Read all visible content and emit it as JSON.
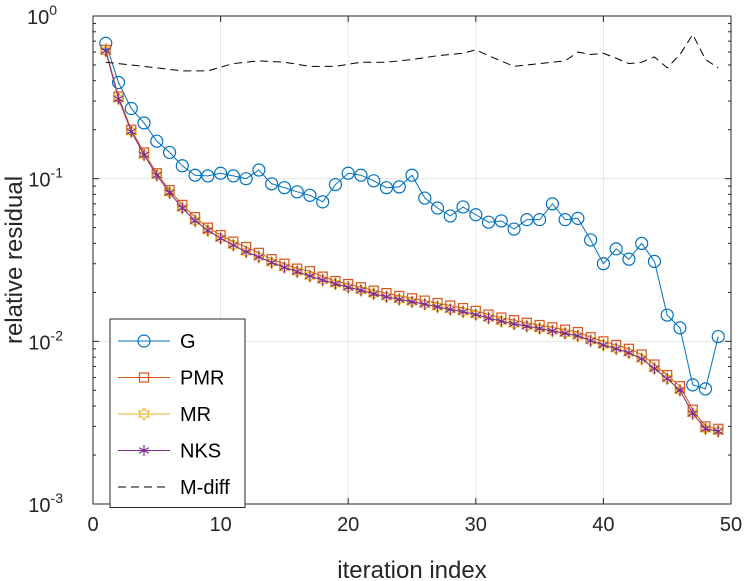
{
  "chart_data": {
    "type": "line",
    "title": "",
    "xlabel": "iteration index",
    "ylabel": "relative residual",
    "yscale": "log",
    "xlim": [
      0,
      50
    ],
    "ylim": [
      0.001,
      1
    ],
    "x_ticks": [
      0,
      10,
      20,
      30,
      40,
      50
    ],
    "y_ticks": [
      {
        "value": 0.001,
        "base": "10",
        "exp": "-3"
      },
      {
        "value": 0.01,
        "base": "10",
        "exp": "-2"
      },
      {
        "value": 0.1,
        "base": "10",
        "exp": "-1"
      },
      {
        "value": 1,
        "base": "10",
        "exp": "0"
      }
    ],
    "grid": true,
    "legend_position": "bottom-left",
    "series": [
      {
        "name": "G",
        "color": "#0072BD",
        "marker": "circle",
        "dash": "",
        "x": [
          1,
          2,
          3,
          4,
          5,
          6,
          7,
          8,
          9,
          10,
          11,
          12,
          13,
          14,
          15,
          16,
          17,
          18,
          19,
          20,
          21,
          22,
          23,
          24,
          25,
          26,
          27,
          28,
          29,
          30,
          31,
          32,
          33,
          34,
          35,
          36,
          37,
          38,
          39,
          40,
          41,
          42,
          43,
          44,
          45,
          46,
          47,
          48,
          49
        ],
        "values": [
          0.68,
          0.39,
          0.27,
          0.22,
          0.17,
          0.145,
          0.12,
          0.105,
          0.104,
          0.108,
          0.104,
          0.1,
          0.113,
          0.093,
          0.088,
          0.083,
          0.079,
          0.072,
          0.092,
          0.108,
          0.105,
          0.097,
          0.088,
          0.089,
          0.105,
          0.076,
          0.066,
          0.059,
          0.067,
          0.06,
          0.054,
          0.055,
          0.049,
          0.056,
          0.056,
          0.07,
          0.056,
          0.057,
          0.042,
          0.03,
          0.037,
          0.032,
          0.04,
          0.031,
          0.0145,
          0.0121,
          0.0054,
          0.0051,
          0.0107
        ]
      },
      {
        "name": "PMR",
        "color": "#D95319",
        "marker": "square",
        "dash": "",
        "x": [
          1,
          2,
          3,
          4,
          5,
          6,
          7,
          8,
          9,
          10,
          11,
          12,
          13,
          14,
          15,
          16,
          17,
          18,
          19,
          20,
          21,
          22,
          23,
          24,
          25,
          26,
          27,
          28,
          29,
          30,
          31,
          32,
          33,
          34,
          35,
          36,
          37,
          38,
          39,
          40,
          41,
          42,
          43,
          44,
          45,
          46,
          47,
          48,
          49
        ],
        "values": [
          0.62,
          0.32,
          0.2,
          0.145,
          0.108,
          0.085,
          0.069,
          0.058,
          0.05,
          0.045,
          0.041,
          0.038,
          0.035,
          0.032,
          0.03,
          0.028,
          0.027,
          0.025,
          0.0235,
          0.0225,
          0.0215,
          0.0205,
          0.0198,
          0.019,
          0.0184,
          0.0178,
          0.0172,
          0.0166,
          0.016,
          0.0154,
          0.0146,
          0.014,
          0.0135,
          0.013,
          0.0126,
          0.0122,
          0.0118,
          0.0114,
          0.0106,
          0.01,
          0.0095,
          0.009,
          0.0083,
          0.0072,
          0.0062,
          0.0053,
          0.0038,
          0.003,
          0.0029
        ]
      },
      {
        "name": "MR",
        "color": "#EDB120",
        "marker": "hexagram",
        "dash": "",
        "x": [
          1,
          2,
          3,
          4,
          5,
          6,
          7,
          8,
          9,
          10,
          11,
          12,
          13,
          14,
          15,
          16,
          17,
          18,
          19,
          20,
          21,
          22,
          23,
          24,
          25,
          26,
          27,
          28,
          29,
          30,
          31,
          32,
          33,
          34,
          35,
          36,
          37,
          38,
          39,
          40,
          41,
          42,
          43,
          44,
          45,
          46,
          47,
          48,
          49
        ],
        "values": [
          0.61,
          0.31,
          0.195,
          0.14,
          0.105,
          0.082,
          0.066,
          0.055,
          0.048,
          0.043,
          0.039,
          0.0355,
          0.033,
          0.0305,
          0.0285,
          0.0268,
          0.0252,
          0.0238,
          0.0226,
          0.0215,
          0.0206,
          0.0196,
          0.0188,
          0.0181,
          0.0175,
          0.0169,
          0.0163,
          0.0157,
          0.0152,
          0.0146,
          0.0139,
          0.0133,
          0.0128,
          0.0124,
          0.012,
          0.0116,
          0.0112,
          0.0108,
          0.0101,
          0.0095,
          0.009,
          0.0085,
          0.0078,
          0.0068,
          0.0059,
          0.005,
          0.0036,
          0.0029,
          0.0028
        ]
      },
      {
        "name": "NKS",
        "color": "#7E2F8E",
        "marker": "asterisk",
        "dash": "",
        "x": [
          1,
          2,
          3,
          4,
          5,
          6,
          7,
          8,
          9,
          10,
          11,
          12,
          13,
          14,
          15,
          16,
          17,
          18,
          19,
          20,
          21,
          22,
          23,
          24,
          25,
          26,
          27,
          28,
          29,
          30,
          31,
          32,
          33,
          34,
          35,
          36,
          37,
          38,
          39,
          40,
          41,
          42,
          43,
          44,
          45,
          46,
          47,
          48,
          49
        ],
        "values": [
          0.61,
          0.31,
          0.195,
          0.14,
          0.105,
          0.082,
          0.066,
          0.055,
          0.048,
          0.043,
          0.039,
          0.0355,
          0.033,
          0.0305,
          0.0285,
          0.0268,
          0.0252,
          0.0238,
          0.0226,
          0.0215,
          0.0206,
          0.0196,
          0.0188,
          0.0181,
          0.0175,
          0.0169,
          0.0163,
          0.0157,
          0.0152,
          0.0146,
          0.0139,
          0.0133,
          0.0128,
          0.0124,
          0.012,
          0.0116,
          0.0112,
          0.0108,
          0.0101,
          0.0095,
          0.009,
          0.0085,
          0.0078,
          0.0068,
          0.0059,
          0.005,
          0.0036,
          0.0029,
          0.0028
        ]
      },
      {
        "name": "M-diff",
        "color": "#000000",
        "marker": "none",
        "dash": "8,5",
        "x": [
          1,
          3,
          5,
          7,
          9,
          11,
          13,
          15,
          17,
          19,
          21,
          23,
          25,
          27,
          29,
          30,
          31,
          33,
          35,
          37,
          38,
          39,
          40,
          41,
          42,
          43,
          44,
          45,
          46,
          47,
          48,
          49
        ],
        "values": [
          0.52,
          0.5,
          0.48,
          0.46,
          0.46,
          0.51,
          0.53,
          0.52,
          0.49,
          0.49,
          0.52,
          0.52,
          0.54,
          0.57,
          0.59,
          0.62,
          0.57,
          0.49,
          0.51,
          0.53,
          0.6,
          0.58,
          0.59,
          0.55,
          0.51,
          0.52,
          0.56,
          0.48,
          0.58,
          0.77,
          0.54,
          0.48
        ]
      }
    ]
  }
}
